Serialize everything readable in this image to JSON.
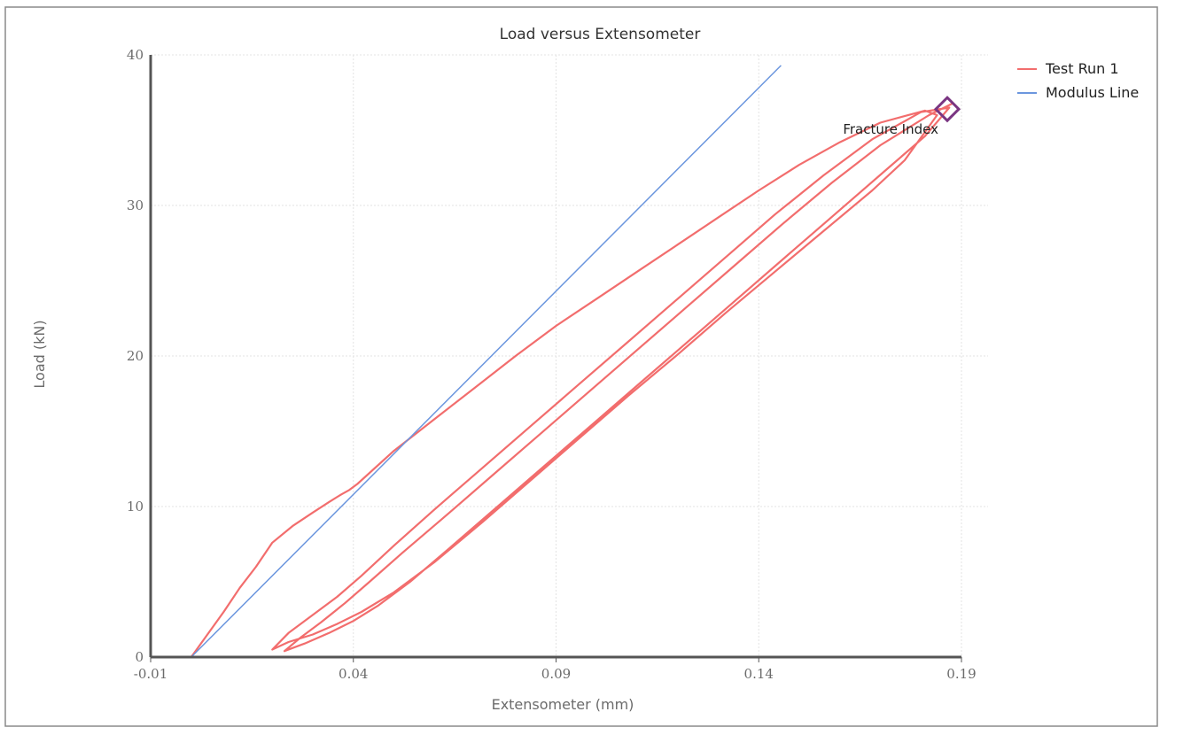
{
  "chart_data": {
    "type": "line",
    "title": "Load versus Extensometer",
    "xlabel": "Extensometer (mm)",
    "ylabel": "Load (kN)",
    "xlim": [
      -0.01,
      0.19
    ],
    "ylim": [
      0,
      40
    ],
    "x_ticks": [
      -0.01,
      0.04,
      0.09,
      0.14,
      0.19
    ],
    "x_tick_labels": [
      "-0.01",
      "0.04",
      "0.09",
      "0.14",
      "0.19"
    ],
    "y_ticks": [
      0,
      10,
      20,
      30,
      40
    ],
    "y_tick_labels": [
      "0",
      "10",
      "20",
      "30",
      "40"
    ],
    "grid": true,
    "legend_position": "top-right",
    "series": [
      {
        "name": "Test Run 1",
        "color": "#f26d6d",
        "x": [
          0.0,
          0.004,
          0.008,
          0.012,
          0.016,
          0.02,
          0.025,
          0.03,
          0.034,
          0.037,
          0.039,
          0.041,
          0.05,
          0.06,
          0.07,
          0.08,
          0.09,
          0.1,
          0.11,
          0.12,
          0.13,
          0.14,
          0.15,
          0.16,
          0.17,
          0.181,
          0.184,
          0.176,
          0.168,
          0.156,
          0.144,
          0.132,
          0.12,
          0.108,
          0.096,
          0.084,
          0.072,
          0.06,
          0.05,
          0.042,
          0.036,
          0.03,
          0.024,
          0.02,
          0.024,
          0.03,
          0.036,
          0.042,
          0.05,
          0.06,
          0.072,
          0.084,
          0.096,
          0.108,
          0.12,
          0.132,
          0.144,
          0.156,
          0.168,
          0.18,
          0.187,
          0.181,
          0.172,
          0.16,
          0.148,
          0.136,
          0.124,
          0.112,
          0.1,
          0.088,
          0.076,
          0.064,
          0.054,
          0.046,
          0.04,
          0.034,
          0.028,
          0.023,
          0.027,
          0.032,
          0.038,
          0.044,
          0.052,
          0.062,
          0.074,
          0.086,
          0.098,
          0.11,
          0.122,
          0.134,
          0.146,
          0.158,
          0.17,
          0.182,
          0.188
        ],
        "y": [
          0.0,
          1.5,
          3.0,
          4.6,
          6.0,
          7.6,
          8.7,
          9.6,
          10.3,
          10.8,
          11.1,
          11.5,
          13.7,
          15.8,
          17.9,
          20.0,
          22.0,
          23.8,
          25.6,
          27.4,
          29.2,
          31.0,
          32.7,
          34.2,
          35.5,
          36.3,
          36.0,
          33.0,
          31.0,
          28.3,
          25.6,
          22.9,
          20.1,
          17.4,
          14.6,
          11.8,
          9.0,
          6.3,
          4.3,
          3.0,
          2.2,
          1.5,
          1.0,
          0.5,
          1.6,
          2.8,
          4.0,
          5.4,
          7.4,
          9.8,
          12.6,
          15.4,
          18.2,
          21.0,
          23.8,
          26.6,
          29.4,
          32.0,
          34.4,
          36.2,
          36.5,
          34.6,
          32.5,
          29.7,
          26.9,
          24.1,
          21.3,
          18.5,
          15.7,
          12.9,
          10.1,
          7.3,
          5.0,
          3.4,
          2.4,
          1.6,
          0.9,
          0.4,
          1.3,
          2.3,
          3.6,
          5.0,
          6.9,
          9.2,
          12.0,
          14.8,
          17.6,
          20.4,
          23.2,
          26.0,
          28.8,
          31.5,
          34.0,
          36.0,
          36.8
        ]
      },
      {
        "name": "Modulus Line",
        "color": "#6b96de",
        "x": [
          0.0,
          0.1455
        ],
        "y": [
          0.0,
          39.3
        ]
      }
    ],
    "annotations": [
      {
        "text": "Fracture Index",
        "x": 0.1865,
        "y": 36.4,
        "marker": "diamond",
        "color": "#7a3582"
      }
    ]
  }
}
